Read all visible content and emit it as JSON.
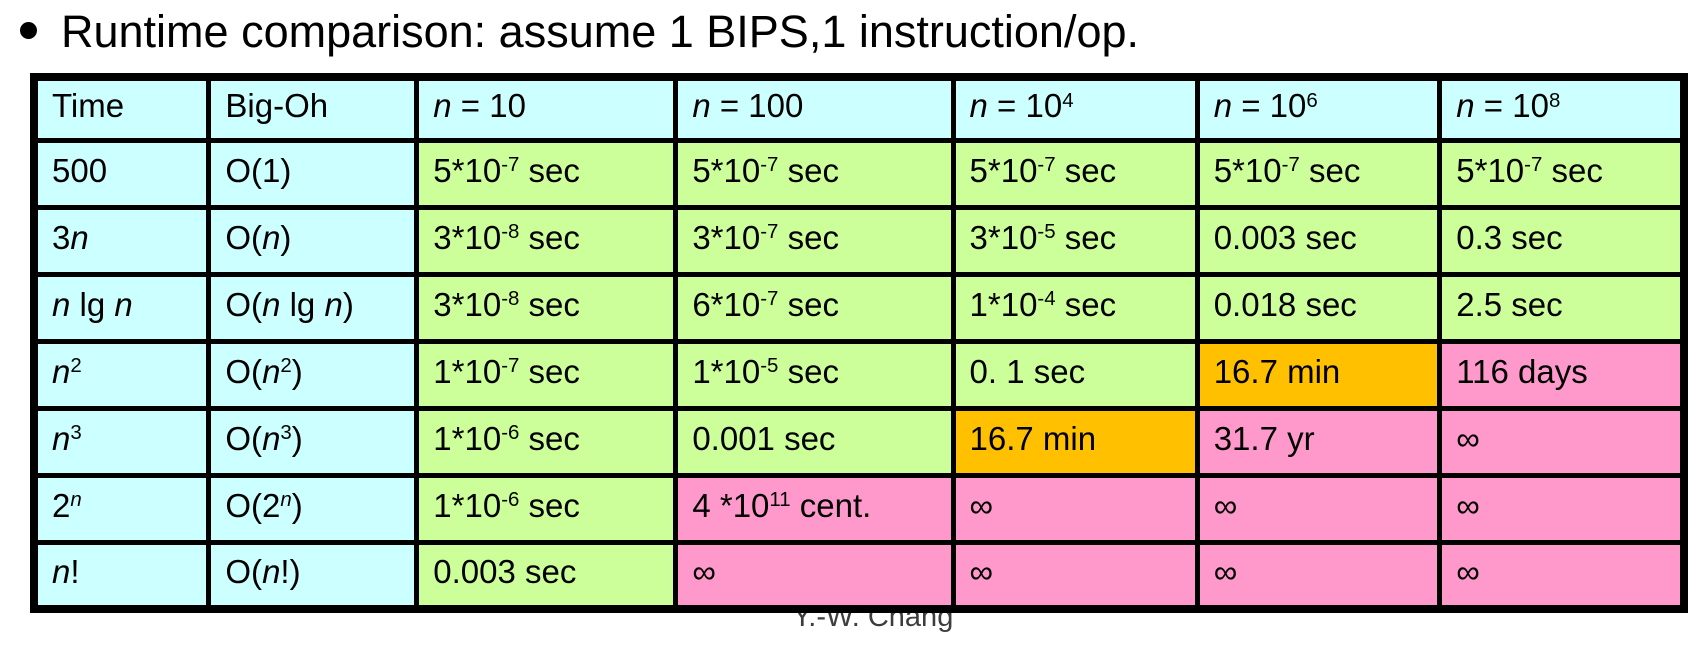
{
  "title": {
    "text": "Runtime comparison: assume 1 BIPS,1 instruction/op."
  },
  "footer": {
    "credit": "Y.-W. Chang"
  },
  "colors": {
    "background": "#FFFFFF",
    "text": "#000000",
    "border": "#000000",
    "cell_header": "#CCFFFF",
    "cell_fast": "#CCFF99",
    "cell_medium": "#FFC000",
    "cell_slow": "#FF99CC",
    "footer_text": "#3D3D3D"
  },
  "table": {
    "column_widths_pct": [
      10.6,
      12.6,
      15.7,
      16.8,
      14.8,
      14.7,
      14.8
    ],
    "column_headers": [
      {
        "html": "Time",
        "tone": "label"
      },
      {
        "html": "Big-Oh",
        "tone": "label"
      },
      {
        "html": "<i>n</i> = 10",
        "tone": "label"
      },
      {
        "html": "<i>n</i> = 100",
        "tone": "label"
      },
      {
        "html": "<i>n</i> = 10<sup>4</sup>",
        "tone": "label"
      },
      {
        "html": "<i>n</i> = 10<sup>6</sup>",
        "tone": "label"
      },
      {
        "html": "<i>n</i> = 10<sup>8</sup>",
        "tone": "label"
      }
    ],
    "rows": [
      {
        "cells": [
          {
            "html": "500",
            "tone": "label"
          },
          {
            "html": "O(1)",
            "tone": "label"
          },
          {
            "html": "5*10<sup>-7</sup> sec",
            "tone": "fast"
          },
          {
            "html": "5*10<sup>-7</sup> sec",
            "tone": "fast"
          },
          {
            "html": "5*10<sup>-7</sup> sec",
            "tone": "fast"
          },
          {
            "html": "5*10<sup>-7</sup> sec",
            "tone": "fast"
          },
          {
            "html": "5*10<sup>-7</sup> sec",
            "tone": "fast"
          }
        ]
      },
      {
        "cells": [
          {
            "html": "3<i>n</i>",
            "tone": "label"
          },
          {
            "html": "O(<i>n</i>)",
            "tone": "label"
          },
          {
            "html": "3*10<sup>-8</sup> sec",
            "tone": "fast"
          },
          {
            "html": "3*10<sup>-7</sup> sec",
            "tone": "fast"
          },
          {
            "html": "3*10<sup>-5</sup> sec",
            "tone": "fast"
          },
          {
            "html": "0.003 sec",
            "tone": "fast"
          },
          {
            "html": "0.3 sec",
            "tone": "fast"
          }
        ]
      },
      {
        "cells": [
          {
            "html": "<i>n</i> lg <i>n</i>",
            "tone": "label"
          },
          {
            "html": "O(<i>n</i> lg <i>n</i>)",
            "tone": "label"
          },
          {
            "html": "3*10<sup>-8</sup> sec",
            "tone": "fast"
          },
          {
            "html": "6*10<sup>-7</sup> sec",
            "tone": "fast"
          },
          {
            "html": "1*10<sup>-4</sup> sec",
            "tone": "fast"
          },
          {
            "html": "0.018 sec",
            "tone": "fast"
          },
          {
            "html": "2.5 sec",
            "tone": "fast"
          }
        ]
      },
      {
        "cells": [
          {
            "html": "<i>n</i><sup>2</sup>",
            "tone": "label"
          },
          {
            "html": "O(<i>n</i><sup>2</sup>)",
            "tone": "label"
          },
          {
            "html": "1*10<sup>-7</sup> sec",
            "tone": "fast"
          },
          {
            "html": "1*10<sup>-5</sup> sec",
            "tone": "fast"
          },
          {
            "html": "0. 1 sec",
            "tone": "fast"
          },
          {
            "html": "16.7 min",
            "tone": "medium"
          },
          {
            "html": "116 days",
            "tone": "slow"
          }
        ]
      },
      {
        "cells": [
          {
            "html": "<i>n</i><sup>3</sup>",
            "tone": "label"
          },
          {
            "html": "O(<i>n</i><sup>3</sup>)",
            "tone": "label"
          },
          {
            "html": "1*10<sup>-6</sup> sec",
            "tone": "fast"
          },
          {
            "html": "0.001 sec",
            "tone": "fast"
          },
          {
            "html": "16.7 min",
            "tone": "medium"
          },
          {
            "html": "31.7 yr",
            "tone": "slow"
          },
          {
            "html": "∞",
            "tone": "slow"
          }
        ]
      },
      {
        "cells": [
          {
            "html": "2<sup><i>n</i></sup>",
            "tone": "label"
          },
          {
            "html": "O(2<sup><i>n</i></sup>)",
            "tone": "label"
          },
          {
            "html": "1*10<sup>-6</sup> sec",
            "tone": "fast"
          },
          {
            "html": "4 *10<sup>11</sup> cent.",
            "tone": "slow"
          },
          {
            "html": "∞",
            "tone": "slow"
          },
          {
            "html": "∞",
            "tone": "slow"
          },
          {
            "html": "∞",
            "tone": "slow"
          }
        ]
      },
      {
        "cells": [
          {
            "html": "<i>n</i>!",
            "tone": "label"
          },
          {
            "html": "O(<i>n</i>!)",
            "tone": "label"
          },
          {
            "html": "0.003 sec",
            "tone": "fast"
          },
          {
            "html": "∞",
            "tone": "slow"
          },
          {
            "html": "∞",
            "tone": "slow"
          },
          {
            "html": "∞",
            "tone": "slow"
          },
          {
            "html": "∞",
            "tone": "slow"
          }
        ]
      }
    ]
  }
}
